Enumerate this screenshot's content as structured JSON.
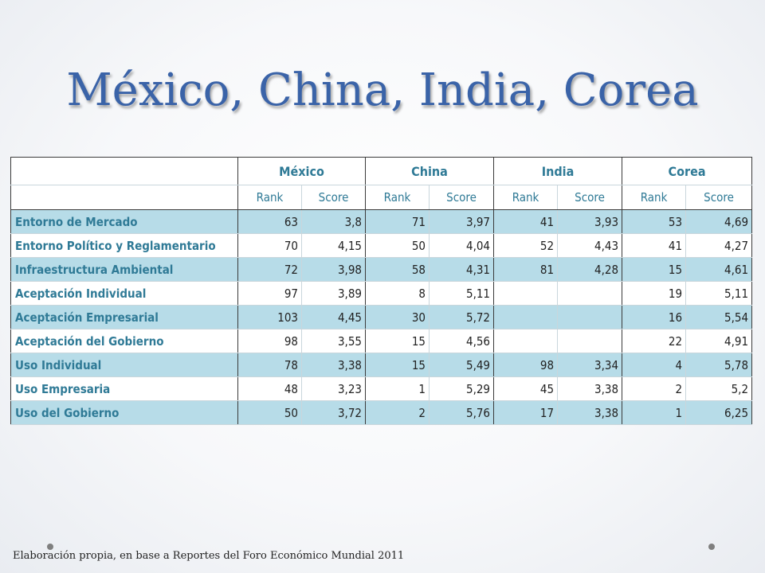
{
  "title": "México, China, India, Corea",
  "countries": [
    "México",
    "China",
    "India",
    "Corea"
  ],
  "subheaders": [
    "Rank",
    "Score",
    "Rank",
    "Score",
    "Rank",
    "Score",
    "Rank",
    "Score"
  ],
  "rows": [
    {
      "label": "Entorno de Mercado",
      "values": [
        "63",
        "3,8",
        "71",
        "3,97",
        "41",
        "3,93",
        "53",
        "4,69"
      ]
    },
    {
      "label": "Entorno Político y Reglamentario",
      "values": [
        "70",
        "4,15",
        "50",
        "4,04",
        "52",
        "4,43",
        "41",
        "4,27"
      ]
    },
    {
      "label": "Infraestructura Ambiental",
      "values": [
        "72",
        "3,98",
        "58",
        "4,31",
        "81",
        "4,28",
        "15",
        "4,61"
      ]
    },
    {
      "label": "Aceptación Individual",
      "values": [
        "97",
        "3,89",
        "8",
        "5,11",
        "",
        "",
        "19",
        "5,11"
      ]
    },
    {
      "label": "Aceptación Empresarial",
      "values": [
        "103",
        "4,45",
        "30",
        "5,72",
        "",
        "",
        "16",
        "5,54"
      ]
    },
    {
      "label": "Aceptación del Gobierno",
      "values": [
        "98",
        "3,55",
        "15",
        "4,56",
        "",
        "",
        "22",
        "4,91"
      ]
    },
    {
      "label": "Uso Individual",
      "values": [
        "78",
        "3,38",
        "15",
        "5,49",
        "98",
        "3,34",
        "4",
        "5,78"
      ]
    },
    {
      "label": "Uso Empresaria",
      "values": [
        "48",
        "3,23",
        "1",
        "5,29",
        "45",
        "3,38",
        "2",
        "5,2"
      ]
    },
    {
      "label": "Uso del Gobierno",
      "values": [
        "50",
        "3,72",
        "2",
        "5,76",
        "17",
        "3,38",
        "1",
        "6,25"
      ]
    }
  ],
  "footer": "Elaboración propia, en base a Reportes del Foro Económico Mundial 2011",
  "colors": {
    "title": "#3a63a8",
    "header_text": "#2f7a96",
    "shaded_row": "#b7dce8"
  }
}
